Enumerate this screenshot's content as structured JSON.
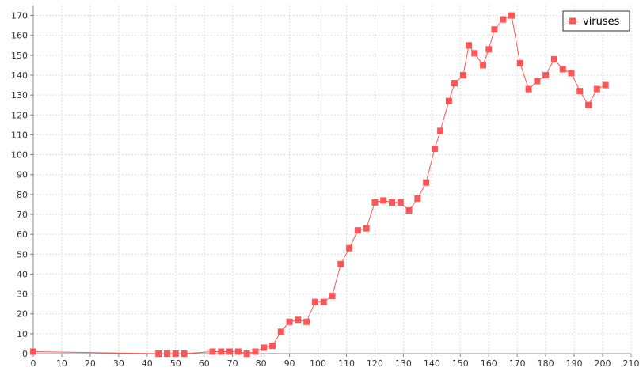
{
  "chart_data": {
    "type": "line",
    "title": "",
    "xlabel": "",
    "ylabel": "",
    "xlim": [
      0,
      210
    ],
    "ylim": [
      0,
      175
    ],
    "x_ticks": [
      0,
      10,
      20,
      30,
      40,
      50,
      60,
      70,
      80,
      90,
      100,
      110,
      120,
      130,
      140,
      150,
      160,
      170,
      180,
      190,
      200,
      210
    ],
    "y_ticks": [
      0,
      10,
      20,
      30,
      40,
      50,
      60,
      70,
      80,
      90,
      100,
      110,
      120,
      130,
      140,
      150,
      160,
      170
    ],
    "grid": true,
    "legend_position": "top-right",
    "colors": {
      "series": "#ff5555",
      "grid": "#dddddd",
      "axis": "#888888"
    },
    "series": [
      {
        "name": "viruses",
        "marker": "square",
        "points": [
          [
            0,
            1
          ],
          [
            44,
            0
          ],
          [
            47,
            0
          ],
          [
            50,
            0
          ],
          [
            53,
            0
          ],
          [
            63,
            1
          ],
          [
            66,
            1
          ],
          [
            69,
            1
          ],
          [
            72,
            1
          ],
          [
            75,
            0
          ],
          [
            78,
            1
          ],
          [
            81,
            3
          ],
          [
            84,
            4
          ],
          [
            87,
            11
          ],
          [
            90,
            16
          ],
          [
            93,
            17
          ],
          [
            96,
            16
          ],
          [
            99,
            26
          ],
          [
            102,
            26
          ],
          [
            105,
            29
          ],
          [
            108,
            45
          ],
          [
            111,
            53
          ],
          [
            114,
            62
          ],
          [
            117,
            63
          ],
          [
            120,
            76
          ],
          [
            123,
            77
          ],
          [
            126,
            76
          ],
          [
            129,
            76
          ],
          [
            132,
            72
          ],
          [
            135,
            78
          ],
          [
            138,
            86
          ],
          [
            141,
            103
          ],
          [
            143,
            112
          ],
          [
            146,
            127
          ],
          [
            148,
            136
          ],
          [
            151,
            140
          ],
          [
            153,
            155
          ],
          [
            155,
            151
          ],
          [
            158,
            145
          ],
          [
            160,
            153
          ],
          [
            162,
            163
          ],
          [
            165,
            168
          ],
          [
            168,
            170
          ],
          [
            171,
            146
          ],
          [
            174,
            133
          ],
          [
            177,
            137
          ],
          [
            180,
            140
          ],
          [
            183,
            148
          ],
          [
            186,
            143
          ],
          [
            189,
            141
          ],
          [
            192,
            132
          ],
          [
            195,
            125
          ],
          [
            198,
            133
          ],
          [
            201,
            135
          ]
        ]
      }
    ]
  }
}
